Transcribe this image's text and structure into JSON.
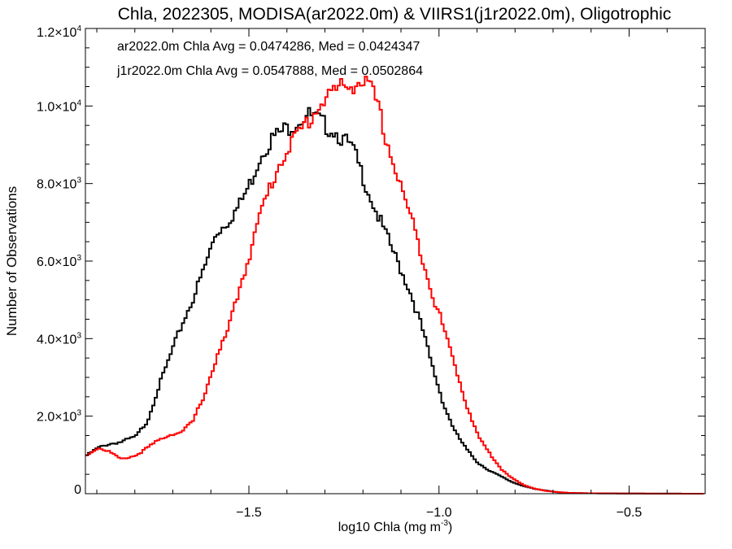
{
  "chart_data": {
    "type": "line",
    "title": "Chla, 2022305, MODISA(ar2022.0m) & VIIRS1(j1r2022.0m), Oligotrophic",
    "xlabel": {
      "base": "log10 Chla (mg m",
      "exp": "-3",
      "tail": ")"
    },
    "ylabel": "Number of Observations",
    "xlim": [
      -1.93,
      -0.3
    ],
    "ylim": [
      0,
      12000
    ],
    "xticks": [
      {
        "value": -1.5,
        "label": "−1.5"
      },
      {
        "value": -1.0,
        "label": "−1.0"
      },
      {
        "value": -0.5,
        "label": "−0.5"
      }
    ],
    "yticks": [
      {
        "value": 0,
        "mant": "0",
        "exp": ""
      },
      {
        "value": 2000,
        "mant": "2.0×10",
        "exp": "3"
      },
      {
        "value": 4000,
        "mant": "4.0×10",
        "exp": "3"
      },
      {
        "value": 6000,
        "mant": "6.0×10",
        "exp": "3"
      },
      {
        "value": 8000,
        "mant": "8.0×10",
        "exp": "3"
      },
      {
        "value": 10000,
        "mant": "1.0×10",
        "exp": "4"
      },
      {
        "value": 12000,
        "mant": "1.2×10",
        "exp": "4"
      }
    ],
    "annotations": [
      {
        "text": "ar2022.0m Chla Avg = 0.0474286, Med = 0.0424347",
        "color": "#000000"
      },
      {
        "text": "j1r2022.0m Chla Avg = 0.0547888, Med = 0.0502864",
        "color": "#ff0000"
      }
    ],
    "step": "histogram",
    "series": [
      {
        "color": "#000000",
        "x": [
          -1.93,
          -1.9,
          -1.87,
          -1.84,
          -1.8,
          -1.77,
          -1.74,
          -1.71,
          -1.68,
          -1.65,
          -1.62,
          -1.59,
          -1.56,
          -1.53,
          -1.5,
          -1.47,
          -1.44,
          -1.41,
          -1.38,
          -1.35,
          -1.32,
          -1.3,
          -1.28,
          -1.26,
          -1.23,
          -1.2,
          -1.17,
          -1.14,
          -1.11,
          -1.08,
          -1.05,
          -1.02,
          -0.99,
          -0.96,
          -0.93,
          -0.9,
          -0.87,
          -0.84,
          -0.81,
          -0.78,
          -0.75,
          -0.72,
          -0.69,
          -0.66,
          -0.6,
          -0.5,
          -0.4,
          -0.3
        ],
        "y": [
          1000,
          1200,
          1300,
          1350,
          1500,
          1900,
          2800,
          3600,
          4400,
          5100,
          5900,
          6800,
          7100,
          7500,
          8100,
          8900,
          9300,
          9500,
          9700,
          9900,
          9750,
          9600,
          9500,
          9300,
          9000,
          8200,
          7400,
          6700,
          6000,
          5300,
          4400,
          3300,
          2300,
          1600,
          1150,
          800,
          600,
          450,
          300,
          200,
          120,
          80,
          40,
          20,
          10,
          5,
          2,
          0
        ]
      },
      {
        "color": "#ff0000",
        "x": [
          -1.93,
          -1.9,
          -1.87,
          -1.84,
          -1.8,
          -1.77,
          -1.74,
          -1.71,
          -1.68,
          -1.65,
          -1.62,
          -1.59,
          -1.56,
          -1.53,
          -1.5,
          -1.47,
          -1.44,
          -1.41,
          -1.38,
          -1.35,
          -1.32,
          -1.3,
          -1.28,
          -1.26,
          -1.23,
          -1.2,
          -1.17,
          -1.14,
          -1.11,
          -1.08,
          -1.05,
          -1.02,
          -0.99,
          -0.96,
          -0.93,
          -0.9,
          -0.87,
          -0.84,
          -0.81,
          -0.78,
          -0.75,
          -0.72,
          -0.69,
          -0.66,
          -0.6,
          -0.5,
          -0.4,
          -0.3
        ],
        "y": [
          1000,
          1200,
          1100,
          900,
          1000,
          1200,
          1400,
          1550,
          1600,
          1900,
          2600,
          3500,
          4200,
          5300,
          6300,
          7400,
          8200,
          8900,
          9300,
          9700,
          10100,
          10400,
          10500,
          10600,
          10700,
          10800,
          10300,
          9200,
          8200,
          7300,
          6300,
          5200,
          4300,
          3300,
          2300,
          1500,
          1050,
          650,
          400,
          220,
          130,
          70,
          40,
          20,
          10,
          5,
          2,
          0
        ]
      }
    ]
  }
}
